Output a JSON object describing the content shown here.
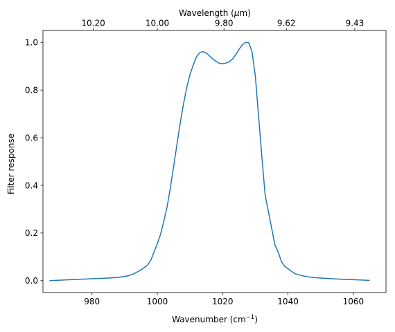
{
  "chart_data": {
    "type": "line",
    "xlabel": "Wavenumber (cm",
    "xlabel_sup": "−1",
    "xlabel_end": ")",
    "x2label": "Wavelength (",
    "x2label_mu": "μ",
    "x2label_end": "m)",
    "ylabel": "Filter response",
    "xlim": [
      965,
      1070
    ],
    "ylim": [
      -0.05,
      1.05
    ],
    "xticks": [
      980,
      1000,
      1020,
      1040,
      1060
    ],
    "xtick_labels": [
      "980",
      "1000",
      "1020",
      "1040",
      "1060"
    ],
    "yticks": [
      0.0,
      0.2,
      0.4,
      0.6,
      0.8,
      1.0
    ],
    "ytick_labels": [
      "0.0",
      "0.2",
      "0.4",
      "0.6",
      "0.8",
      "1.0"
    ],
    "x2ticks": [
      10.2,
      10.0,
      9.8,
      9.62,
      9.43
    ],
    "x2tick_labels": [
      "10.20",
      "10.00",
      "9.80",
      "9.62",
      "9.43"
    ],
    "grid": false,
    "line_color": "#1f77b4",
    "series": [
      {
        "x": [
          967,
          970,
          975,
          980,
          985,
          988,
          991,
          993,
          995,
          997,
          998,
          999,
          1000,
          1001,
          1002,
          1003,
          1004,
          1005,
          1006,
          1007,
          1008,
          1009,
          1010,
          1011,
          1012,
          1013,
          1014,
          1015,
          1016,
          1017,
          1018,
          1019,
          1020,
          1021,
          1022,
          1023,
          1024,
          1025,
          1026,
          1027,
          1028,
          1029,
          1030,
          1031,
          1032,
          1033,
          1034,
          1035,
          1036,
          1037,
          1038,
          1039,
          1040,
          1042,
          1044,
          1046,
          1048,
          1050,
          1055,
          1060,
          1065
        ],
        "y": [
          0.0,
          0.002,
          0.005,
          0.008,
          0.011,
          0.014,
          0.02,
          0.03,
          0.045,
          0.065,
          0.085,
          0.12,
          0.155,
          0.195,
          0.25,
          0.31,
          0.39,
          0.48,
          0.57,
          0.66,
          0.74,
          0.81,
          0.865,
          0.905,
          0.94,
          0.957,
          0.961,
          0.955,
          0.943,
          0.93,
          0.92,
          0.912,
          0.91,
          0.913,
          0.918,
          0.93,
          0.948,
          0.97,
          0.99,
          1.0,
          0.998,
          0.96,
          0.86,
          0.69,
          0.52,
          0.36,
          0.29,
          0.22,
          0.15,
          0.12,
          0.08,
          0.06,
          0.05,
          0.03,
          0.022,
          0.016,
          0.013,
          0.011,
          0.007,
          0.004,
          0.001
        ]
      }
    ]
  }
}
